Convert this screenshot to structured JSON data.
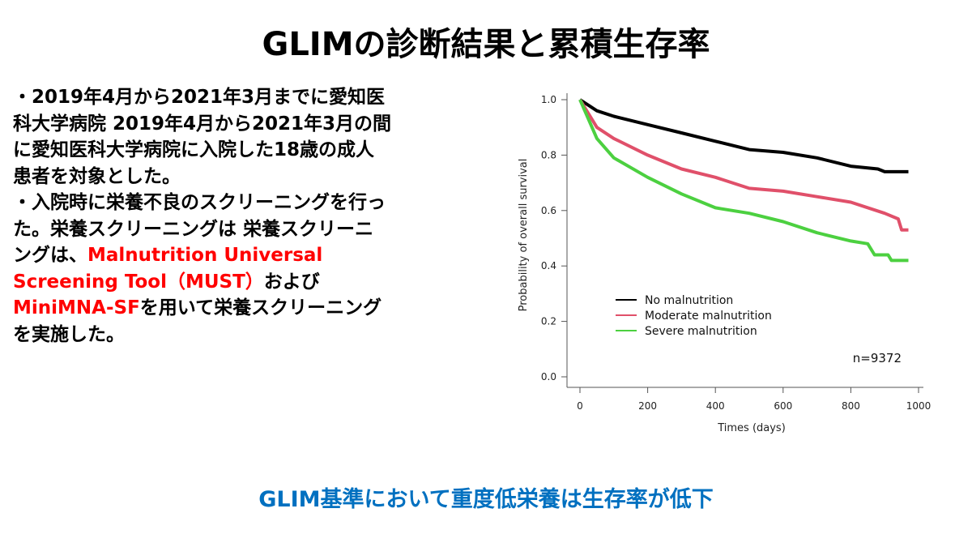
{
  "slide": {
    "title": "GLIMの診断結果と累積生存率",
    "body_lines": [
      [
        {
          "text": "・2019年4月から2021年3月までに愛知医",
          "color": "black"
        }
      ],
      [
        {
          "text": "科大学病院 2019年4月から2021年3月の間",
          "color": "black"
        }
      ],
      [
        {
          "text": "に愛知医科大学病院に入院した18歳の成人",
          "color": "black"
        }
      ],
      [
        {
          "text": "患者を対象とした。",
          "color": "black"
        }
      ],
      [
        {
          "text": "・入院時に栄養不良のスクリーニングを行っ",
          "color": "black"
        }
      ],
      [
        {
          "text": "た。栄養スクリーニングは 栄養スクリーニ",
          "color": "black"
        }
      ],
      [
        {
          "text": "ングは、",
          "color": "black"
        },
        {
          "text": "Malnutrition Universal",
          "color": "red"
        }
      ],
      [
        {
          "text": "Screening Tool（MUST）",
          "color": "red"
        },
        {
          "text": "および",
          "color": "black"
        }
      ],
      [
        {
          "text": "MiniMNA-SF",
          "color": "red"
        },
        {
          "text": "を用いて栄養スクリーニング",
          "color": "black"
        }
      ],
      [
        {
          "text": "を実施した。",
          "color": "black"
        }
      ]
    ],
    "conclusion": "GLIM基準において重度低栄養は生存率が低下"
  },
  "colors": {
    "red_text": "#ff0000",
    "conclusion": "#0070c0",
    "no": "#000000",
    "moderate": "#e0506a",
    "severe": "#4cd040"
  },
  "chart_data": {
    "type": "line",
    "title": "",
    "xlabel": "Times (days)",
    "ylabel": "Probability of overall survival",
    "xlim": [
      0,
      1000
    ],
    "ylim": [
      0,
      1.0
    ],
    "xticks": [
      "0",
      "200",
      "400",
      "600",
      "800",
      "1000"
    ],
    "yticks": [
      "0.0",
      "0.2",
      "0.4",
      "0.6",
      "0.8",
      "1.0"
    ],
    "grid": false,
    "legend_position": "bottom-left",
    "annotation": "n=9372",
    "series": [
      {
        "name": "No malnutrition",
        "color": "#000000",
        "x": [
          0,
          50,
          100,
          200,
          300,
          400,
          500,
          600,
          700,
          800,
          880,
          900,
          970
        ],
        "y": [
          1.0,
          0.96,
          0.94,
          0.91,
          0.88,
          0.85,
          0.82,
          0.81,
          0.79,
          0.76,
          0.75,
          0.74,
          0.74
        ]
      },
      {
        "name": "Moderate malnutrition",
        "color": "#e0506a",
        "x": [
          0,
          50,
          100,
          200,
          300,
          400,
          500,
          600,
          700,
          800,
          900,
          940,
          950,
          970
        ],
        "y": [
          1.0,
          0.9,
          0.86,
          0.8,
          0.75,
          0.72,
          0.68,
          0.67,
          0.65,
          0.63,
          0.59,
          0.57,
          0.53,
          0.53
        ]
      },
      {
        "name": "Severe malnutrition",
        "color": "#4cd040",
        "x": [
          0,
          50,
          100,
          200,
          300,
          400,
          500,
          600,
          700,
          800,
          850,
          870,
          910,
          920,
          970
        ],
        "y": [
          1.0,
          0.86,
          0.79,
          0.72,
          0.66,
          0.61,
          0.59,
          0.56,
          0.52,
          0.49,
          0.48,
          0.44,
          0.44,
          0.42,
          0.42
        ]
      }
    ]
  }
}
